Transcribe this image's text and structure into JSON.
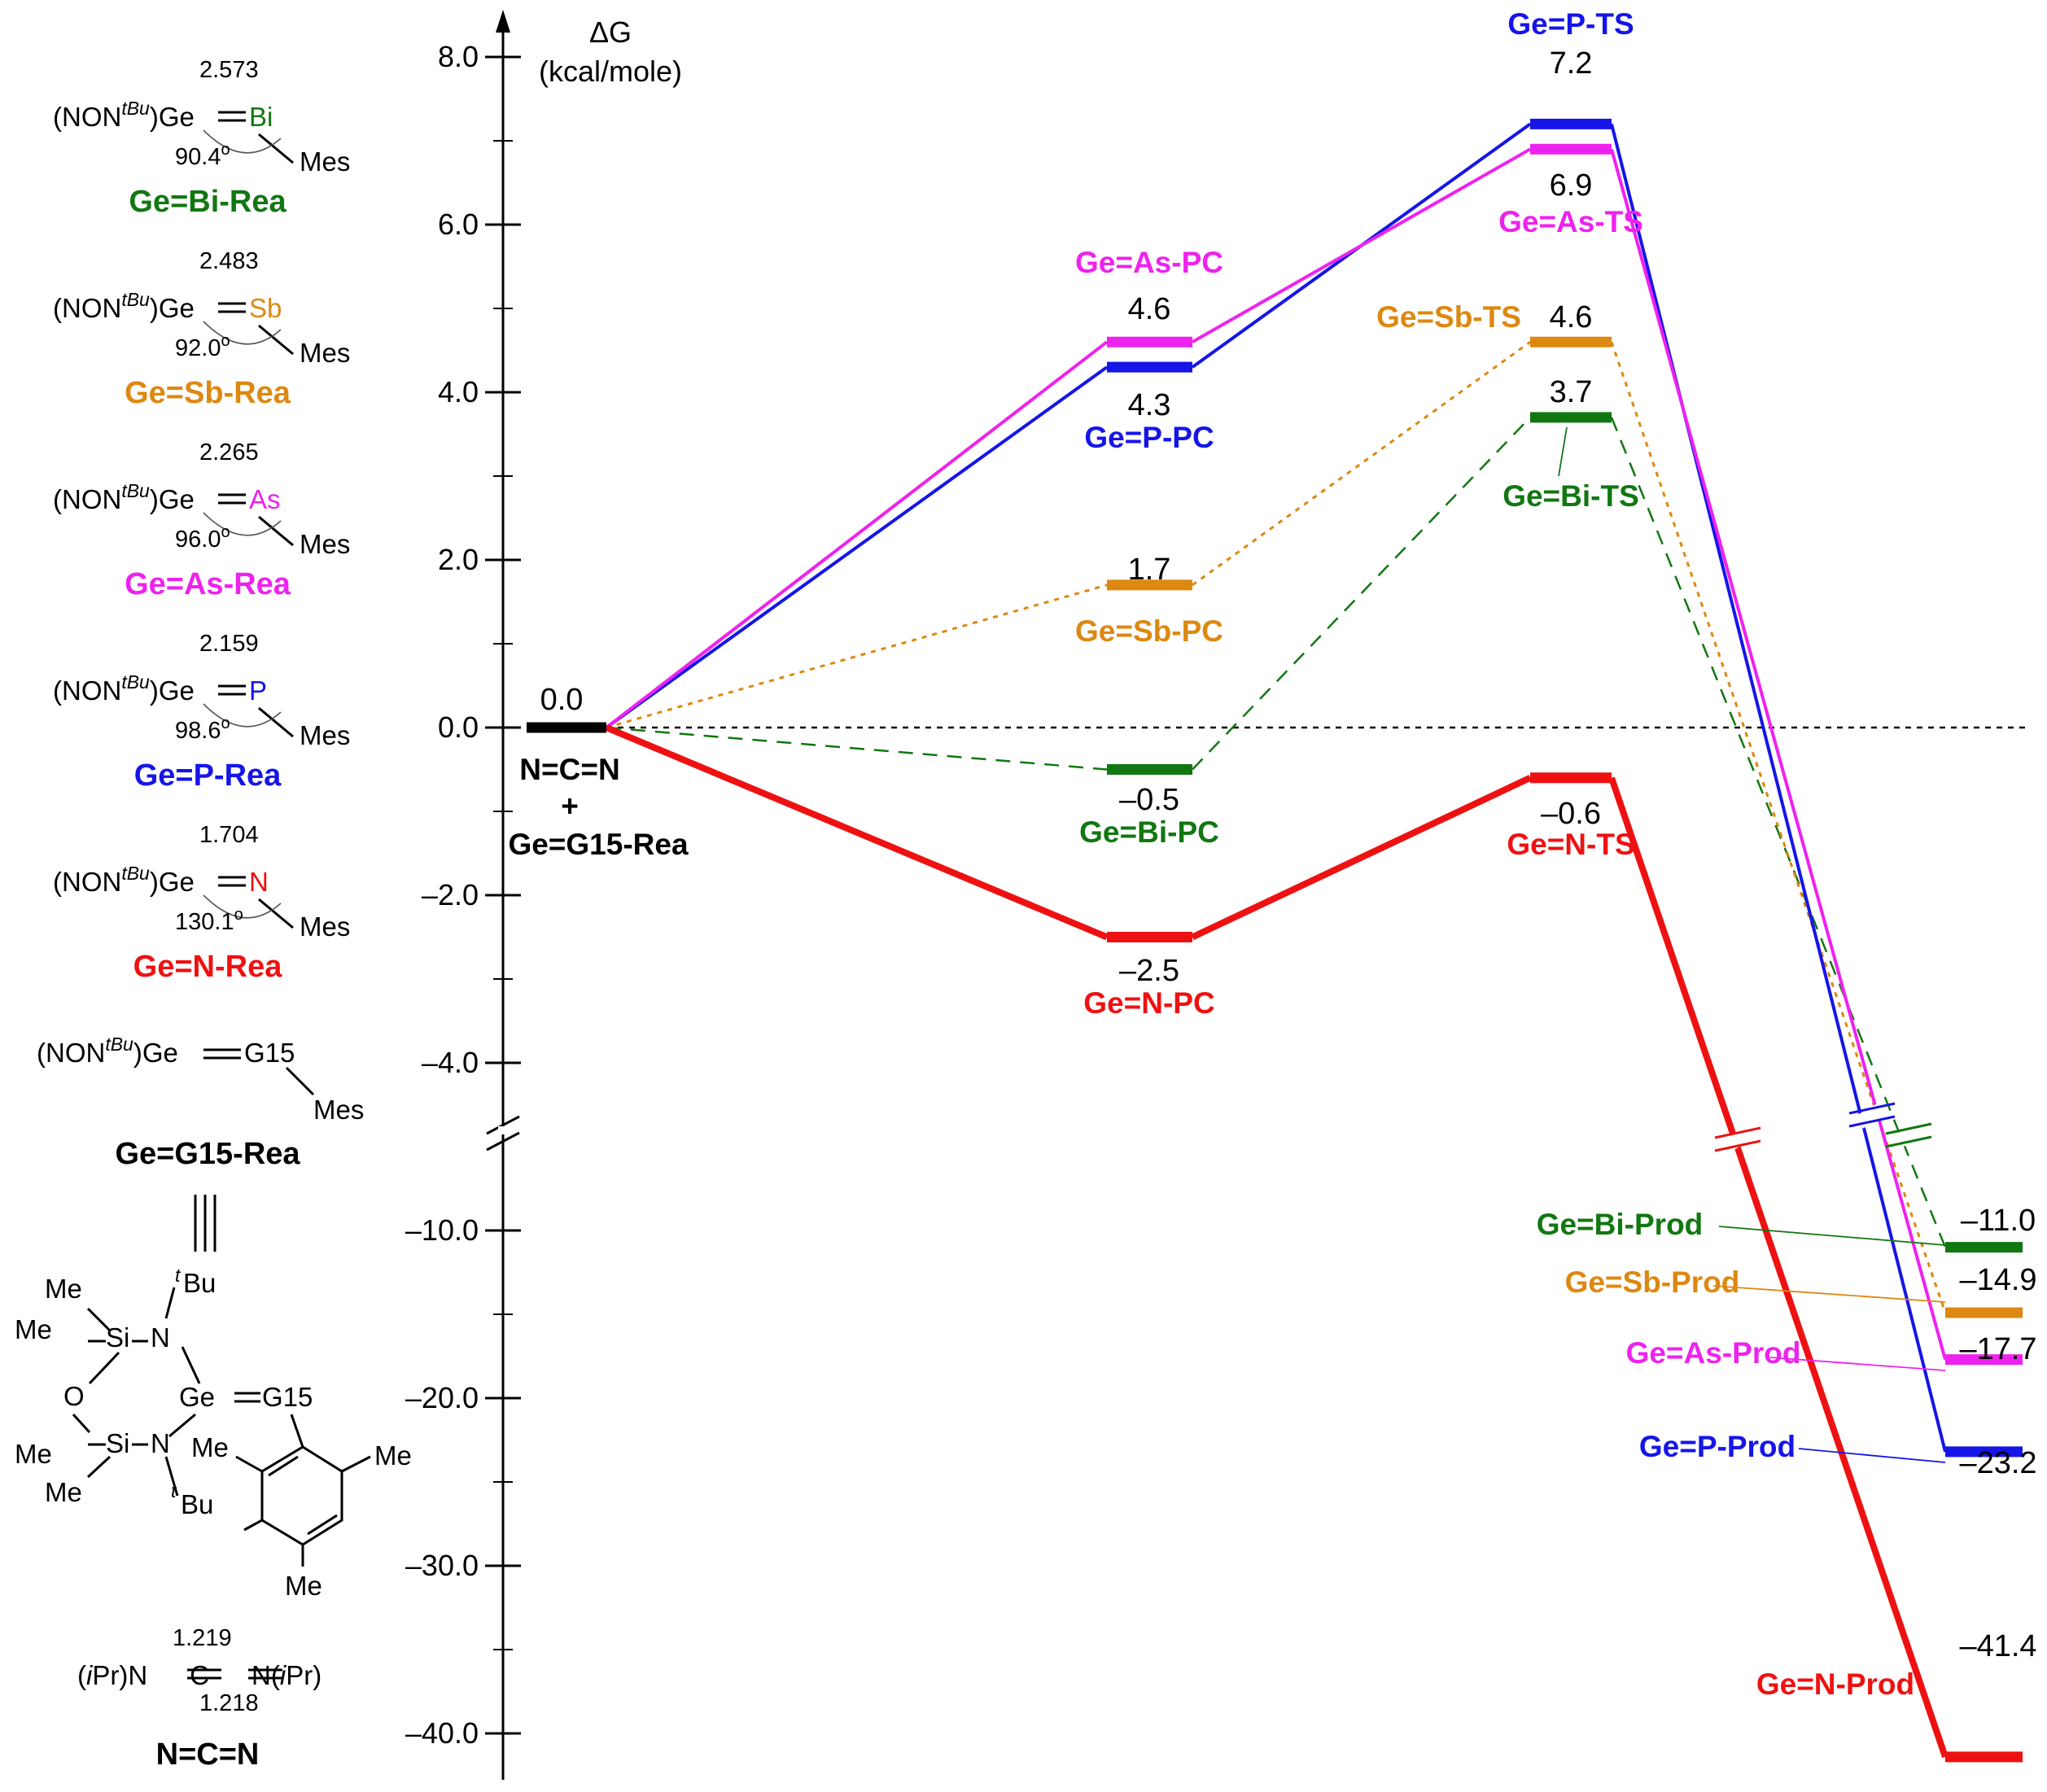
{
  "chart_data": {
    "type": "energy_profile",
    "ylabel": "ΔG",
    "yunit": "(kcal/mole)",
    "axis_break": "between -4.0 and -10.0 (upper segment 2.0 per tick, lower segment 10.0 per tick)",
    "yticks": [
      {
        "value": 8.0,
        "label": "8.0"
      },
      {
        "value": 6.0,
        "label": "6.0"
      },
      {
        "value": 4.0,
        "label": "4.0"
      },
      {
        "value": 2.0,
        "label": "2.0"
      },
      {
        "value": 0.0,
        "label": "0.0"
      },
      {
        "value": -2.0,
        "label": "–2.0"
      },
      {
        "value": -4.0,
        "label": "–4.0"
      },
      {
        "value": -10.0,
        "label": "–10.0"
      },
      {
        "value": -20.0,
        "label": "–20.0"
      },
      {
        "value": -30.0,
        "label": "–30.0"
      },
      {
        "value": -40.0,
        "label": "–40.0"
      }
    ],
    "minor_ticks": [
      7.0,
      5.0,
      3.0,
      1.0,
      -1.0,
      -3.0,
      -15.0,
      -25.0,
      -35.0
    ],
    "zero_line": true,
    "reactant": {
      "value": 0.0,
      "value_label": "0.0",
      "label_lines": [
        "N=C=N",
        "+",
        "Ge=G15-Rea"
      ],
      "color": "#000000"
    },
    "stages": [
      "Rea",
      "PC",
      "TS",
      "Prod"
    ],
    "series": [
      {
        "name": "Ge=N",
        "color": "#ee1111",
        "line_style": "solid-thick",
        "values": [
          0.0,
          -2.5,
          -0.6,
          -41.4
        ],
        "value_labels": [
          "0.0",
          "–2.5",
          "–0.6",
          "–41.4"
        ],
        "state_labels": {
          "PC": "Ge=N-PC",
          "TS": "Ge=N-TS",
          "Prod": "Ge=N-Prod"
        }
      },
      {
        "name": "Ge=P",
        "color": "#1515e8",
        "line_style": "solid",
        "values": [
          0.0,
          4.3,
          7.2,
          -23.2
        ],
        "value_labels": [
          "0.0",
          "4.3",
          "7.2",
          "–23.2"
        ],
        "state_labels": {
          "PC": "Ge=P-PC",
          "TS": "Ge=P-TS",
          "Prod": "Ge=P-Prod"
        }
      },
      {
        "name": "Ge=As",
        "color": "#ee22ee",
        "line_style": "solid",
        "values": [
          0.0,
          4.6,
          6.9,
          -17.7
        ],
        "value_labels": [
          "0.0",
          "4.6",
          "6.9",
          "–17.7"
        ],
        "state_labels": {
          "PC": "Ge=As-PC",
          "TS": "Ge=As-TS",
          "Prod": "Ge=As-Prod"
        }
      },
      {
        "name": "Ge=Sb",
        "color": "#dd8811",
        "line_style": "dotted",
        "values": [
          0.0,
          1.7,
          4.6,
          -14.9
        ],
        "value_labels": [
          "0.0",
          "1.7",
          "4.6",
          "–14.9"
        ],
        "state_labels": {
          "PC": "Ge=Sb-PC",
          "TS": "Ge=Sb-TS",
          "Prod": "Ge=Sb-Prod"
        }
      },
      {
        "name": "Ge=Bi",
        "color": "#117711",
        "line_style": "dashed",
        "values": [
          0.0,
          -0.5,
          3.7,
          -11.0
        ],
        "value_labels": [
          "0.0",
          "–0.5",
          "3.7",
          "–11.0"
        ],
        "state_labels": {
          "PC": "Ge=Bi-PC",
          "TS": "Ge=Bi-TS",
          "Prod": "Ge=Bi-Prod"
        }
      }
    ]
  },
  "structures": {
    "ligand": "(NON",
    "ligand_sup": "tBu",
    "ligand_end": ")Ge",
    "mes": "Mes",
    "items": [
      {
        "atom": "Bi",
        "bond": "2.573",
        "angle": "90.4",
        "deg": "o",
        "name": "Ge=Bi-Rea",
        "color": "#117711"
      },
      {
        "atom": "Sb",
        "bond": "2.483",
        "angle": "92.0",
        "deg": "o",
        "name": "Ge=Sb-Rea",
        "color": "#dd8811"
      },
      {
        "atom": "As",
        "bond": "2.265",
        "angle": "96.0",
        "deg": "o",
        "name": "Ge=As-Rea",
        "color": "#ee22ee"
      },
      {
        "atom": "P",
        "bond": "2.159",
        "angle": "98.6",
        "deg": "o",
        "name": "Ge=P-Rea",
        "color": "#1515e8"
      },
      {
        "atom": "N",
        "bond": "1.704",
        "angle": "130.1",
        "deg": "o",
        "name": "Ge=N-Rea",
        "color": "#ee1111"
      }
    ],
    "generic": {
      "atom": "G15",
      "name": "Ge=G15-Rea",
      "color": "#000000"
    },
    "equivalence_mark": "|||",
    "skeletal": {
      "me": "Me",
      "si": "Si",
      "n": "N",
      "o": "O",
      "ge": "Ge",
      "g15": "G15",
      "bu": "Bu",
      "t": "t"
    },
    "carbodiimide": {
      "left": "(",
      "ipr_i": "i",
      "ipr_pr": "Pr",
      "left_close": ")N",
      "center": "C",
      "right": "N(",
      "right_close": ")",
      "bond_top": "1.219",
      "bond_bottom": "1.218",
      "name": "N=C=N"
    }
  }
}
